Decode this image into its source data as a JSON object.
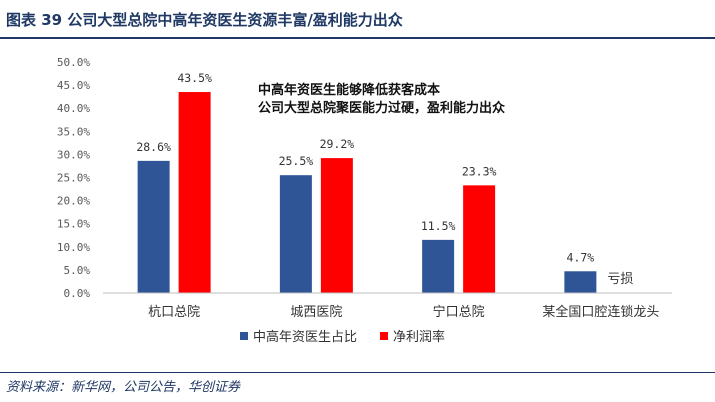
{
  "header": {
    "title": "图表 39  公司大型总院中高年资医生资源丰富/盈利能力出众"
  },
  "footer": {
    "source": "资料来源：新华网，公司公告，华创证券"
  },
  "colors": {
    "brand": "#1f3864",
    "series_blue": "#2f5597",
    "series_red": "#ff0000"
  },
  "chart_data": {
    "type": "bar",
    "categories": [
      "杭口总院",
      "城西医院",
      "宁口总院",
      "某全国口腔连锁龙头"
    ],
    "series": [
      {
        "name": "中高年资医生占比",
        "values": [
          28.6,
          25.5,
          11.5,
          4.7
        ],
        "labels": [
          "28.6%",
          "25.5%",
          "11.5%",
          "4.7%"
        ]
      },
      {
        "name": "净利润率",
        "values": [
          43.5,
          29.2,
          23.3,
          null
        ],
        "labels": [
          "43.5%",
          "29.2%",
          "23.3%",
          null
        ]
      }
    ],
    "ylim": [
      0,
      50
    ],
    "yticks": [
      "0.0%",
      "5.0%",
      "10.0%",
      "15.0%",
      "20.0%",
      "25.0%",
      "30.0%",
      "35.0%",
      "40.0%",
      "45.0%",
      "50.0%"
    ],
    "annotations": [
      "中高年资医生能够降低获客成本",
      "公司大型总院聚医能力过硬，盈利能力出众"
    ],
    "side_note": "亏损",
    "legend": "bottom",
    "grid": false
  }
}
